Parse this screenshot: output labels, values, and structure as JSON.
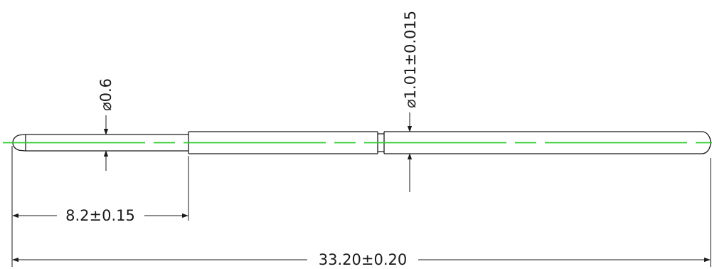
{
  "dimensions": {
    "tip_diameter": "⌀0.6",
    "body_diameter": "⌀1.01±0.015",
    "tip_length": "8.2±0.15",
    "overall_length": "33.20±0.20"
  },
  "colors": {
    "outline": "#1a1a1a",
    "centerline": "#33cc33",
    "background": "#ffffff"
  }
}
